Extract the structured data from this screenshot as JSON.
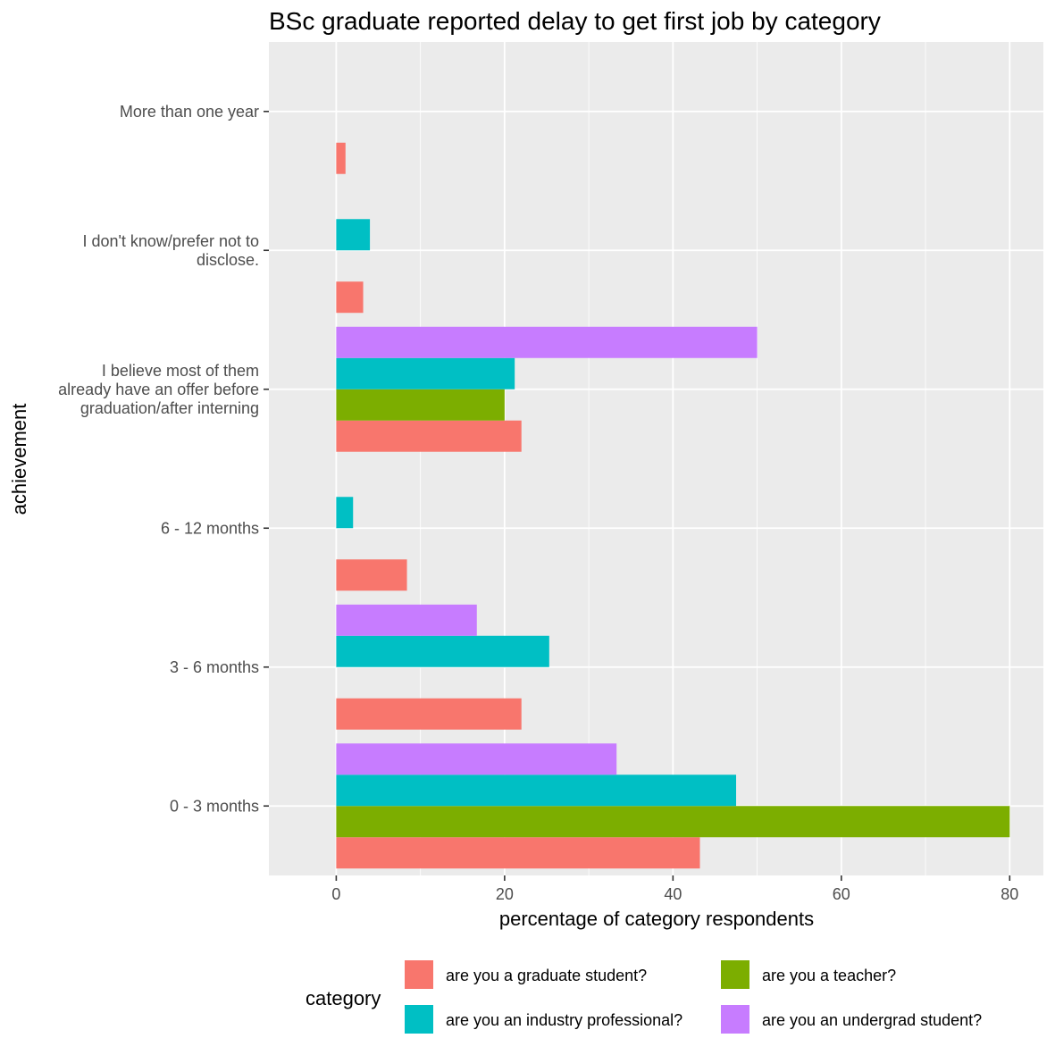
{
  "chart_data": {
    "type": "bar",
    "orientation": "horizontal",
    "title": "BSc graduate reported delay to get first job by category",
    "xlabel": "percentage of category respondents",
    "ylabel": "achievement",
    "xlim": [
      -8,
      84
    ],
    "xticks": [
      0,
      20,
      40,
      60,
      80
    ],
    "grid": true,
    "legend": {
      "title": "category",
      "position": "bottom"
    },
    "categories": [
      [
        "0 - 3 months"
      ],
      [
        "3 - 6 months"
      ],
      [
        "6 - 12 months"
      ],
      [
        "I believe most of them",
        "already have an offer before",
        "graduation/after interning"
      ],
      [
        "I don't know/prefer not to",
        "disclose."
      ],
      [
        "More than one year"
      ]
    ],
    "series": [
      {
        "name": "are you a graduate student?",
        "color": "#F8766D",
        "values": [
          43.2,
          22.0,
          8.4,
          22.0,
          3.2,
          1.1
        ]
      },
      {
        "name": "are you a teacher?",
        "color": "#7CAE00",
        "values": [
          80.0,
          null,
          null,
          20.0,
          null,
          null
        ]
      },
      {
        "name": "are you an industry professional?",
        "color": "#00BFC4",
        "values": [
          47.5,
          25.3,
          2.0,
          21.2,
          4.0,
          null
        ]
      },
      {
        "name": "are you an undergrad student?",
        "color": "#C77CFF",
        "values": [
          33.3,
          16.7,
          null,
          50.0,
          null,
          null
        ]
      }
    ]
  }
}
